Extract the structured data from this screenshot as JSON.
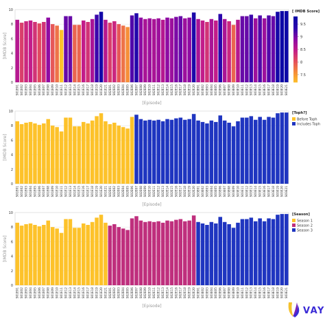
{
  "episodes": [
    "S01E01",
    "S01E02",
    "S01E03",
    "S01E04",
    "S01E05",
    "S01E06",
    "S01E07",
    "S01E08",
    "S01E09",
    "S01E10",
    "S01E11",
    "S01E12",
    "S01E13",
    "S01E14",
    "S01E15",
    "S01E16",
    "S01E17",
    "S01E18",
    "S01E19",
    "S01E20",
    "S01E21",
    "S02E01",
    "S02E02",
    "S02E03",
    "S02E04",
    "S02E05",
    "S02E06",
    "S02E07",
    "S02E08",
    "S02E09",
    "S02E10",
    "S02E11",
    "S02E12",
    "S02E13",
    "S02E14",
    "S02E15",
    "S02E16",
    "S02E17",
    "S02E18",
    "S02E19",
    "S02E20",
    "S03E01",
    "S03E02",
    "S03E03",
    "S03E04",
    "S03E05",
    "S03E06",
    "S03E07",
    "S03E08",
    "S03E09",
    "S03E10",
    "S03E11",
    "S03E12",
    "S03E13",
    "S03E14",
    "S03E15",
    "S03E16",
    "S03E17",
    "S03E18",
    "S03E19",
    "S03E20",
    "S03E21"
  ],
  "chart_data": [
    {
      "type": "bar",
      "xlabel": "[Episode]",
      "ylabel": "[IMDB Score]",
      "ylim": [
        0,
        10
      ],
      "yticks": [
        "0",
        "2",
        "4",
        "6",
        "8",
        "10"
      ],
      "legend_title": "[ IMDB Score]",
      "colorbar": {
        "range": [
          7.2,
          9.8
        ],
        "ticks": [
          "7.5",
          "8",
          "8.5",
          "9",
          "9.5"
        ],
        "tick_values": [
          7.5,
          8,
          8.5,
          9,
          9.5
        ],
        "colors": [
          "#fdc22a",
          "#f58b3a",
          "#e34d5e",
          "#c21c8a",
          "#8b0aa5",
          "#2c07ad",
          "#0d08a6"
        ]
      },
      "values": [
        8.6,
        8.2,
        8.4,
        8.5,
        8.3,
        8.1,
        8.3,
        8.9,
        8.0,
        7.8,
        7.2,
        9.1,
        9.1,
        7.9,
        7.9,
        8.5,
        8.3,
        8.7,
        9.3,
        9.7,
        8.6,
        8.2,
        8.4,
        8.0,
        7.8,
        7.6,
        9.2,
        9.5,
        8.9,
        8.7,
        8.8,
        8.7,
        8.8,
        8.6,
        8.9,
        8.8,
        9.0,
        9.1,
        8.8,
        8.9,
        9.6,
        8.7,
        8.5,
        8.3,
        8.7,
        8.5,
        9.4,
        8.7,
        8.4,
        7.9,
        8.6,
        9.1,
        9.1,
        9.3,
        8.8,
        9.2,
        8.8,
        9.2,
        9.1,
        9.7,
        9.8,
        9.8
      ]
    },
    {
      "type": "bar",
      "xlabel": "[Episode]",
      "ylabel": "[IMDB Score]",
      "ylim": [
        0,
        10
      ],
      "yticks": [
        "0",
        "2",
        "4",
        "6",
        "8",
        "10"
      ],
      "legend_title": "[Toph?]",
      "legend": [
        {
          "name": "Before Toph",
          "color": "#fdc22a"
        },
        {
          "name": "Includes Toph",
          "color": "#1f35c0"
        }
      ],
      "group_split_index": 27,
      "values": [
        8.6,
        8.2,
        8.4,
        8.5,
        8.3,
        8.1,
        8.3,
        8.9,
        8.0,
        7.8,
        7.2,
        9.1,
        9.1,
        7.9,
        7.9,
        8.5,
        8.3,
        8.7,
        9.3,
        9.7,
        8.6,
        8.2,
        8.4,
        8.0,
        7.8,
        7.6,
        9.2,
        9.5,
        8.9,
        8.7,
        8.8,
        8.7,
        8.8,
        8.6,
        8.9,
        8.8,
        9.0,
        9.1,
        8.8,
        8.9,
        9.6,
        8.7,
        8.5,
        8.3,
        8.7,
        8.5,
        9.4,
        8.7,
        8.4,
        7.9,
        8.6,
        9.1,
        9.1,
        9.3,
        8.8,
        9.2,
        8.8,
        9.2,
        9.1,
        9.7,
        9.8,
        9.8
      ]
    },
    {
      "type": "bar",
      "xlabel": "[Episode]",
      "ylabel": "[IMDB Score]",
      "ylim": [
        0,
        10
      ],
      "yticks": [
        "0",
        "2",
        "4",
        "6",
        "8",
        "10"
      ],
      "legend_title": "[Season]",
      "legend": [
        {
          "name": "Season 1",
          "color": "#fdc22a"
        },
        {
          "name": "Season 2",
          "color": "#bf2f7d"
        },
        {
          "name": "Season 3",
          "color": "#1f35c0"
        }
      ],
      "season_lengths": [
        21,
        20,
        21
      ],
      "values": [
        8.6,
        8.2,
        8.4,
        8.5,
        8.3,
        8.1,
        8.3,
        8.9,
        8.0,
        7.8,
        7.2,
        9.1,
        9.1,
        7.9,
        7.9,
        8.5,
        8.3,
        8.7,
        9.3,
        9.7,
        8.6,
        8.2,
        8.4,
        8.0,
        7.8,
        7.6,
        9.2,
        9.5,
        8.9,
        8.7,
        8.8,
        8.7,
        8.8,
        8.6,
        8.9,
        8.8,
        9.0,
        9.1,
        8.8,
        8.9,
        9.6,
        8.7,
        8.5,
        8.3,
        8.7,
        8.5,
        9.4,
        8.7,
        8.4,
        7.9,
        8.6,
        9.1,
        9.1,
        9.3,
        8.8,
        9.2,
        8.8,
        9.2,
        9.1,
        9.7,
        9.8,
        9.8
      ]
    }
  ],
  "brand": {
    "name": "VAYU",
    "colors": [
      "#f4c12c",
      "#c2186f",
      "#3a2bd6"
    ]
  }
}
